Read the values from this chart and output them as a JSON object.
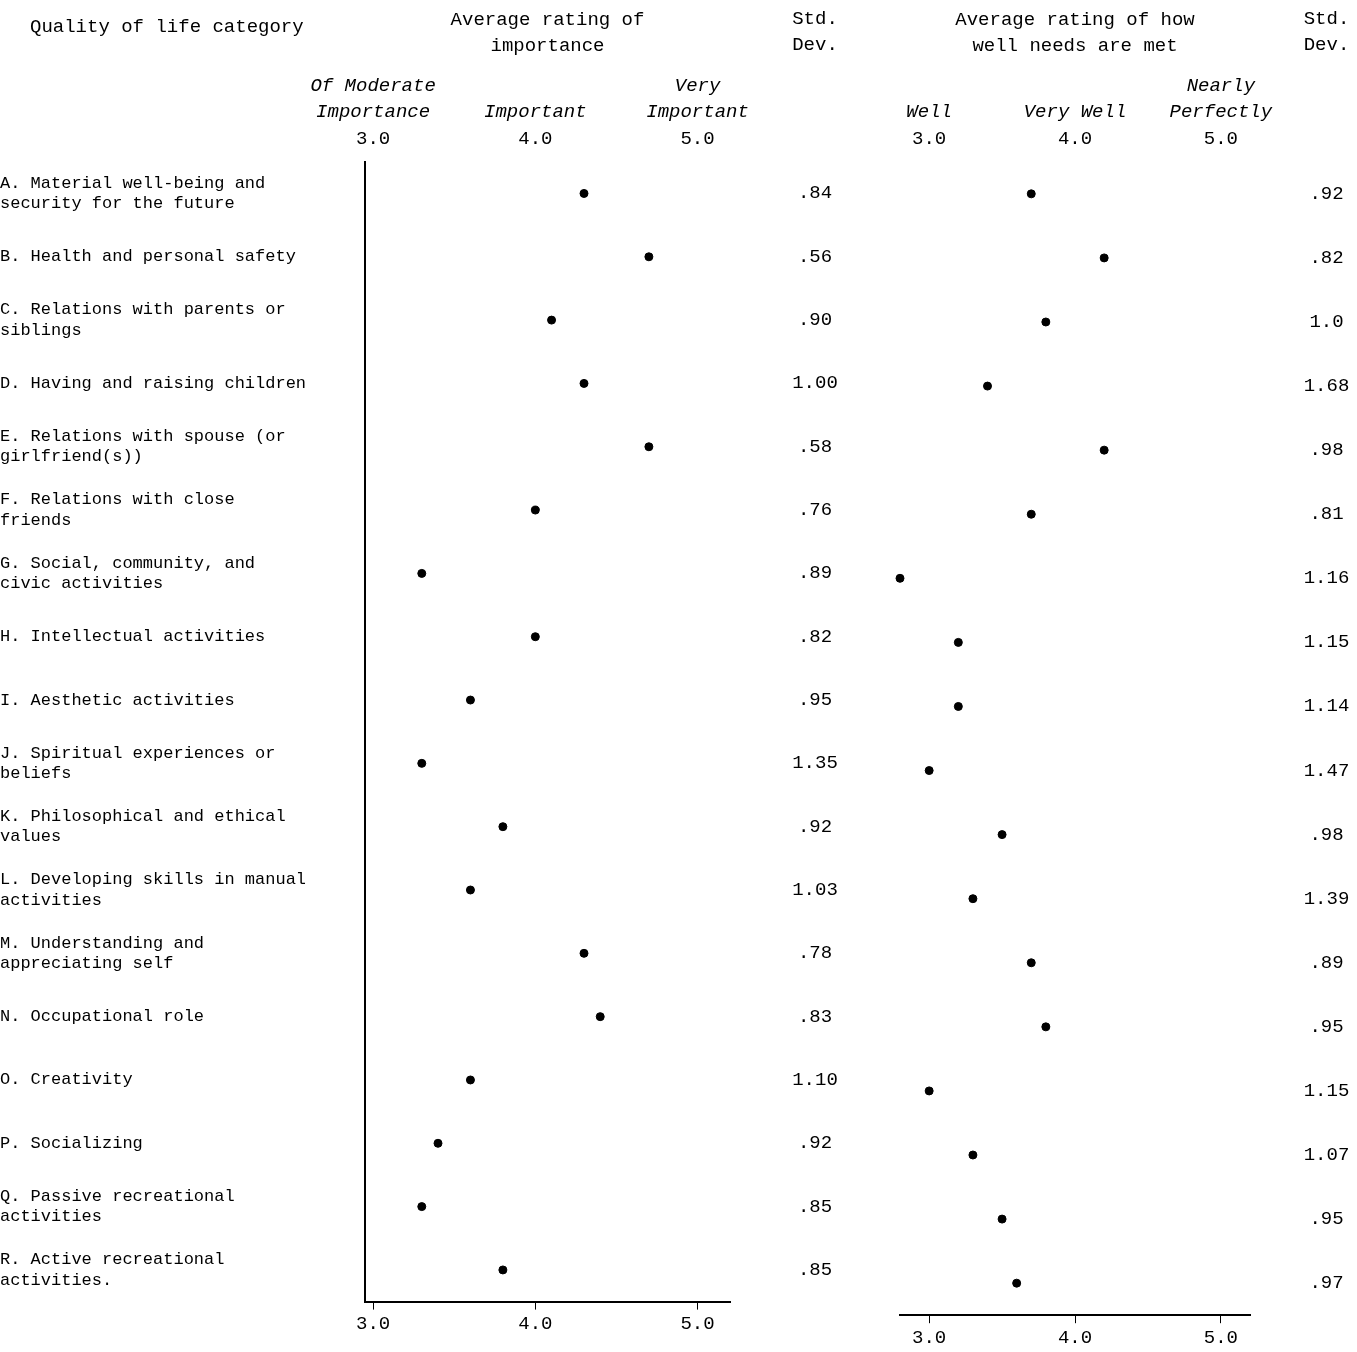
{
  "chart_data": [
    {
      "type": "scatter",
      "orientation": "horizontal",
      "title": "Average rating of importance",
      "ylabel": "Quality of life category",
      "categories": [
        "A. Material well-being and security for the future",
        "B. Health and personal safety",
        "C. Relations with parents or siblings",
        "D. Having and raising children",
        "E. Relations with spouse (or girlfriend(s))",
        "F. Relations with close friends",
        "G. Social, community, and civic activities",
        "H. Intellectual activities",
        "I. Aesthetic activities",
        "J. Spiritual experiences or beliefs",
        "K. Philosophical and ethical values",
        "L. Developing skills in manual activities",
        "M. Understanding and appreciating self",
        "N. Occupational role",
        "O. Creativity",
        "P. Socializing",
        "Q. Passive recreational activities",
        "R. Active recreational activities."
      ],
      "series": [
        {
          "color": "#000000",
          "values": [
            4.3,
            4.7,
            4.1,
            4.3,
            4.7,
            4.0,
            3.3,
            4.0,
            3.6,
            3.3,
            3.8,
            3.6,
            4.3,
            4.4,
            3.6,
            3.4,
            3.3,
            3.8
          ]
        }
      ],
      "xlim": [
        2.95,
        5.2
      ],
      "xticks": [
        {
          "value": 3,
          "label": "3.0"
        },
        {
          "value": 4,
          "label": "4.0"
        },
        {
          "value": 5,
          "label": "5.0"
        }
      ],
      "x2lim": [
        2.95,
        5.2
      ],
      "x2ticks": [
        {
          "value": 3,
          "label": "3.0"
        },
        {
          "value": 4,
          "label": "4.0"
        },
        {
          "value": 5,
          "label": "5.0"
        }
      ],
      "annotations": [
        "Of Moderate Importance",
        "Important",
        "Very Important"
      ],
      "marker": "circle",
      "grid": false
    },
    {
      "type": "other",
      "title": "Std. Dev.",
      "annotations": [
        ".84",
        ".56",
        ".90",
        "1.00",
        ".58",
        ".76",
        ".89",
        ".82",
        ".95",
        "1.35",
        ".92",
        "1.03",
        ".78",
        ".83",
        "1.10",
        ".92",
        ".85",
        ".85"
      ]
    },
    {
      "type": "scatter",
      "orientation": "horizontal",
      "title": "Average rating of how well needs are met",
      "categories": [
        null,
        null,
        null,
        null,
        null,
        null,
        null,
        null,
        null,
        null,
        null,
        null,
        null,
        null,
        null,
        null,
        null,
        null
      ],
      "series": [
        {
          "color": "#000000",
          "values": [
            3.7,
            4.2,
            3.8,
            3.4,
            4.2,
            3.7,
            2.8,
            3.2,
            3.2,
            3.0,
            3.5,
            3.3,
            3.7,
            3.8,
            3.0,
            3.3,
            3.5,
            3.6
          ]
        }
      ],
      "xlim": [
        2.8,
        5.2
      ],
      "xticks": [
        {
          "value": 3,
          "label": "3.0"
        },
        {
          "value": 4,
          "label": "4.0"
        },
        {
          "value": 5,
          "label": "5.0"
        }
      ],
      "x2lim": [
        2.8,
        5.2
      ],
      "x2ticks": [
        {
          "value": 3,
          "label": "3.0"
        },
        {
          "value": 4,
          "label": "4.0"
        },
        {
          "value": 5,
          "label": "5.0"
        }
      ],
      "annotations": [
        "Well",
        "Very Well",
        "Nearly Perfectly"
      ],
      "marker": "circle",
      "grid": false
    },
    {
      "type": "other",
      "title": "Std. Dev.",
      "annotations": [
        ".92",
        ".82",
        "1.0",
        "1.68",
        ".98",
        ".81",
        "1.16",
        "1.15",
        "1.14",
        "1.47",
        ".98",
        "1.39",
        ".89",
        ".95",
        "1.15",
        "1.07",
        ".95",
        ".97"
      ]
    }
  ]
}
